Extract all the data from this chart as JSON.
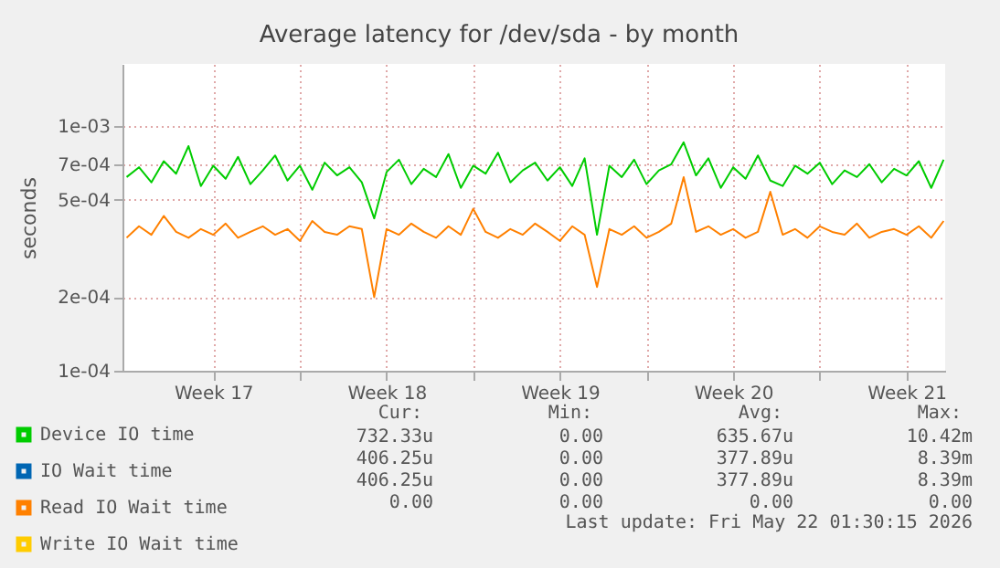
{
  "chart_data": {
    "type": "line",
    "title": "Average latency for /dev/sda - by month",
    "ylabel": "seconds",
    "log": true,
    "grid": true,
    "legend": "bottom",
    "xlim": [
      "--04-18T20:00",
      "--05-22T01:30"
    ],
    "xticks": [
      {
        "value": "--04-22T12:00",
        "label": "Week 17"
      },
      {
        "value": "--04-26T00:00",
        "label": null
      },
      {
        "value": "--04-29T12:00",
        "label": "Week 18"
      },
      {
        "value": "--05-03T00:00",
        "label": null
      },
      {
        "value": "--05-06T12:00",
        "label": "Week 19"
      },
      {
        "value": "--05-10T00:00",
        "label": null
      },
      {
        "value": "--05-13T12:00",
        "label": "Week 20"
      },
      {
        "value": "--05-17T00:00",
        "label": null
      },
      {
        "value": "--05-20T12:00",
        "label": "Week 21"
      }
    ],
    "ylim": [
      0.0001,
      0.0018
    ],
    "yticks": [
      {
        "value": 0.0001,
        "label": "1e-04"
      },
      {
        "value": 0.0002,
        "label": "2e-04"
      },
      {
        "value": 0.0005,
        "label": "5e-04"
      },
      {
        "value": 0.0007,
        "label": "7e-04"
      },
      {
        "value": 0.001,
        "label": "1e-03"
      }
    ],
    "x": [
      "--04-19T00:00",
      "--04-19T12:00",
      "--04-20T00:00",
      "--04-20T12:00",
      "--04-21T00:00",
      "--04-21T12:00",
      "--04-22T00:00",
      "--04-22T12:00",
      "--04-23T00:00",
      "--04-23T12:00",
      "--04-24T00:00",
      "--04-24T12:00",
      "--04-25T00:00",
      "--04-25T12:00",
      "--04-26T00:00",
      "--04-26T12:00",
      "--04-27T00:00",
      "--04-27T12:00",
      "--04-28T00:00",
      "--04-28T12:00",
      "--04-29T00:00",
      "--04-29T12:00",
      "--04-30T00:00",
      "--04-30T12:00",
      "--05-01T00:00",
      "--05-01T12:00",
      "--05-02T00:00",
      "--05-02T12:00",
      "--05-03T00:00",
      "--05-03T12:00",
      "--05-04T00:00",
      "--05-04T12:00",
      "--05-05T00:00",
      "--05-05T12:00",
      "--05-06T00:00",
      "--05-06T12:00",
      "--05-07T00:00",
      "--05-07T12:00",
      "--05-08T00:00",
      "--05-08T12:00",
      "--05-09T00:00",
      "--05-09T12:00",
      "--05-10T00:00",
      "--05-10T12:00",
      "--05-11T00:00",
      "--05-11T12:00",
      "--05-12T00:00",
      "--05-12T12:00",
      "--05-13T00:00",
      "--05-13T12:00",
      "--05-14T00:00",
      "--05-14T12:00",
      "--05-15T00:00",
      "--05-15T12:00",
      "--05-16T00:00",
      "--05-16T12:00",
      "--05-17T00:00",
      "--05-17T12:00",
      "--05-18T00:00",
      "--05-18T12:00",
      "--05-19T00:00",
      "--05-19T12:00",
      "--05-20T00:00",
      "--05-20T12:00",
      "--05-21T00:00",
      "--05-21T12:00",
      "--05-22T00:00"
    ],
    "series": [
      {
        "name": "Device IO time",
        "color": "#00cc00",
        "values": [
          0.00062,
          0.00068,
          0.00059,
          0.00072,
          0.00064,
          0.00083,
          0.00057,
          0.00069,
          0.00061,
          0.00075,
          0.00058,
          0.00066,
          0.00076,
          0.0006,
          0.00069,
          0.00055,
          0.00071,
          0.00063,
          0.00068,
          0.00059,
          0.00042,
          0.00065,
          0.00073,
          0.00058,
          0.00067,
          0.00062,
          0.00077,
          0.00056,
          0.00069,
          0.00064,
          0.00078,
          0.00059,
          0.00066,
          0.00071,
          0.0006,
          0.00068,
          0.00057,
          0.00074,
          0.00036,
          0.00069,
          0.00062,
          0.00073,
          0.00058,
          0.00066,
          0.0007,
          0.00086,
          0.00063,
          0.00074,
          0.00056,
          0.00068,
          0.00061,
          0.00076,
          0.0006,
          0.00057,
          0.00069,
          0.00064,
          0.00071,
          0.00058,
          0.00066,
          0.00062,
          0.0007,
          0.00059,
          0.00067,
          0.00063,
          0.00072,
          0.00056,
          0.00073
        ]
      },
      {
        "name": "IO Wait time",
        "color": "#0066b3",
        "values": [
          null,
          null,
          null,
          null,
          null,
          null,
          null,
          null,
          null,
          null,
          null,
          null,
          null,
          null,
          null,
          null,
          null,
          null,
          null,
          null,
          null,
          null,
          null,
          null,
          null,
          null,
          null,
          null,
          null,
          null,
          null,
          null,
          null,
          null,
          null,
          null,
          null,
          null,
          null,
          null,
          null,
          null,
          null,
          null,
          null,
          null,
          null,
          null,
          null,
          null,
          null,
          null,
          null,
          null,
          null,
          null,
          null,
          null,
          null,
          null,
          null,
          null,
          null,
          null,
          null,
          null,
          null
        ]
      },
      {
        "name": "Read IO Wait time",
        "color": "#ff8000",
        "values": [
          0.00035,
          0.00039,
          0.00036,
          0.00043,
          0.00037,
          0.00035,
          0.00038,
          0.00036,
          0.0004,
          0.00035,
          0.00037,
          0.00039,
          0.00036,
          0.00038,
          0.00034,
          0.00041,
          0.00037,
          0.00036,
          0.00039,
          0.00038,
          0.0002,
          0.00038,
          0.00036,
          0.0004,
          0.00037,
          0.00035,
          0.00039,
          0.00036,
          0.00046,
          0.00037,
          0.00035,
          0.00038,
          0.00036,
          0.0004,
          0.00037,
          0.00034,
          0.00039,
          0.00036,
          0.00022,
          0.00038,
          0.00036,
          0.00039,
          0.00035,
          0.00037,
          0.0004,
          0.00062,
          0.00037,
          0.00039,
          0.00036,
          0.00038,
          0.00035,
          0.00037,
          0.00054,
          0.00036,
          0.00038,
          0.00035,
          0.00039,
          0.00037,
          0.00036,
          0.0004,
          0.00035,
          0.00037,
          0.00038,
          0.00036,
          0.00039,
          0.00035,
          0.00041
        ]
      },
      {
        "name": "Write IO Wait time",
        "color": "#ffcc00",
        "values": [
          null,
          null,
          null,
          null,
          null,
          null,
          null,
          null,
          null,
          null,
          null,
          null,
          null,
          null,
          null,
          null,
          null,
          null,
          null,
          null,
          null,
          null,
          null,
          null,
          null,
          null,
          null,
          null,
          null,
          null,
          null,
          null,
          null,
          null,
          null,
          null,
          null,
          null,
          null,
          null,
          null,
          null,
          null,
          null,
          null,
          null,
          null,
          null,
          null,
          null,
          null,
          null,
          null,
          null,
          null,
          null,
          null,
          null,
          null,
          null,
          null,
          null,
          null,
          null,
          null,
          null,
          null
        ]
      }
    ],
    "annotations": [
      "Cur:",
      "Min:",
      "Avg:",
      "Max:",
      "732.33u",
      "0.00",
      "635.67u",
      "10.42m",
      "406.25u",
      "0.00",
      "377.89u",
      "8.39m",
      "406.25u",
      "0.00",
      "377.89u",
      "8.39m",
      "0.00",
      "0.00",
      "0.00",
      "0.00",
      "Last update: Fri May 22 01:30:15 2026"
    ]
  }
}
